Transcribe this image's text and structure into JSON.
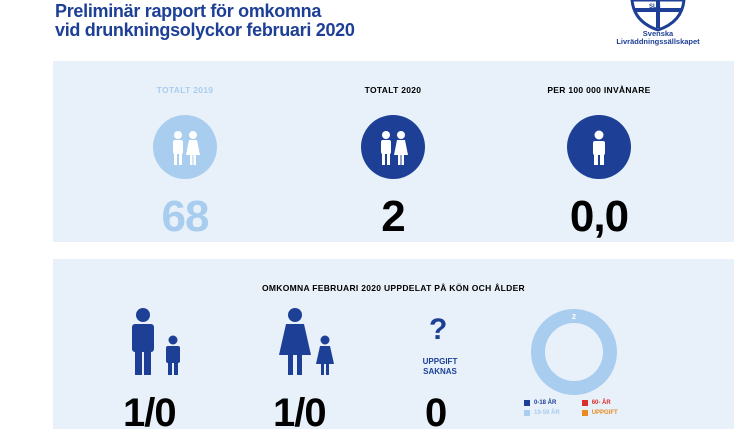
{
  "header": {
    "title_line1": "Preliminär rapport för omkomna",
    "title_line2": "vid drunkningsolyckor februari 2020",
    "logo_line1": "Svenska",
    "logo_line2": "Livräddningssällskapet",
    "logo_letters": "SLS"
  },
  "stats": [
    {
      "label": "TOTALT 2019",
      "value": "68"
    },
    {
      "label": "TOTALT 2020",
      "value": "2"
    },
    {
      "label": "PER 100 000 INVÅNARE",
      "value": "0,0"
    }
  ],
  "breakdown": {
    "title": "OMKOMNA FEBRUARI 2020 UPPDELAT PÅ KÖN OCH ÅLDER",
    "male_value": "1/0",
    "female_value": "1/0",
    "unknown_mark": "?",
    "unknown_line1": "UPPGIFT",
    "unknown_line2": "SAKNAS",
    "unknown_value": "0",
    "donut_label": "2"
  },
  "chart_data": {
    "type": "pie",
    "categories": [
      "0-18 ÅR",
      "19-59 ÅR",
      "60- ÅR",
      "UPPGIFT SAKNAS"
    ],
    "values": [
      0,
      2,
      0,
      0
    ],
    "legend_visible": [
      "0-18 ÅR",
      "19-59 ÅR",
      "60- ÅR",
      "UPPGIFT"
    ]
  },
  "colors": {
    "dark_blue": "#1d3f96",
    "light_blue": "#a9cdee",
    "panel_bg": "#e8f1fa",
    "red": "#d9302b",
    "orange": "#e98b1f"
  }
}
